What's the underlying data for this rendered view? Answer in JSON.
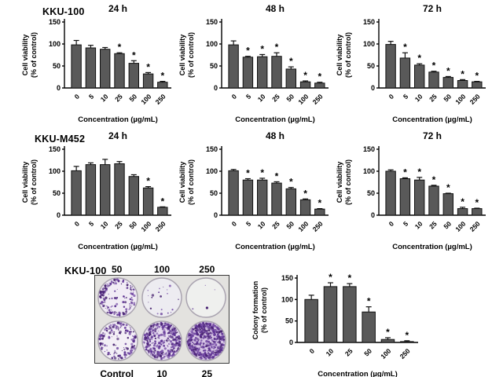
{
  "figure": {
    "bar_color": "#595959",
    "bar_stroke": "#111111",
    "axis_color": "#000000",
    "sig_marker": "*",
    "rows": [
      {
        "cell_line": "KKU-100"
      },
      {
        "cell_line": "KKU-M452"
      }
    ]
  },
  "chart_data": [
    {
      "type": "bar",
      "cell_line": "KKU-100",
      "title": "24 h",
      "categories": [
        "0",
        "5",
        "10",
        "25",
        "50",
        "100",
        "250"
      ],
      "values": [
        98,
        91,
        88,
        78,
        56,
        32,
        13
      ],
      "errors": [
        10,
        6,
        4,
        2,
        6,
        3,
        2
      ],
      "sig": [
        0,
        0,
        0,
        1,
        1,
        1,
        1
      ],
      "ylabel": [
        "Cell viability",
        "(% of control)"
      ],
      "xlabel": "Concentration (µg/mL)",
      "ylim": [
        0,
        150
      ],
      "yticks": [
        0,
        50,
        100,
        150
      ]
    },
    {
      "type": "bar",
      "cell_line": "KKU-100",
      "title": "48 h",
      "categories": [
        "0",
        "5",
        "10",
        "25",
        "50",
        "100",
        "250"
      ],
      "values": [
        98,
        70,
        71,
        72,
        43,
        14,
        11
      ],
      "errors": [
        9,
        2,
        5,
        8,
        5,
        2,
        2
      ],
      "sig": [
        0,
        1,
        1,
        1,
        1,
        1,
        1
      ],
      "ylabel": [
        "Cell viability",
        "(% of control)"
      ],
      "xlabel": "Concentration (µg/mL)",
      "ylim": [
        0,
        150
      ],
      "yticks": [
        0,
        50,
        100,
        150
      ]
    },
    {
      "type": "bar",
      "cell_line": "KKU-100",
      "title": "72 h",
      "categories": [
        "0",
        "5",
        "10",
        "25",
        "50",
        "100",
        "250"
      ],
      "values": [
        99,
        68,
        52,
        36,
        24,
        17,
        14
      ],
      "errors": [
        7,
        12,
        3,
        2,
        2,
        2,
        1
      ],
      "sig": [
        0,
        1,
        1,
        1,
        1,
        1,
        1
      ],
      "ylabel": [
        "Cell viability",
        "(% of control)"
      ],
      "xlabel": "Concentration (µg/mL)",
      "ylim": [
        0,
        150
      ],
      "yticks": [
        0,
        50,
        100,
        150
      ]
    },
    {
      "type": "bar",
      "cell_line": "KKU-M452",
      "title": "24 h",
      "categories": [
        "0",
        "5",
        "10",
        "25",
        "50",
        "100",
        "250"
      ],
      "values": [
        101,
        115,
        115,
        117,
        88,
        62,
        18
      ],
      "errors": [
        10,
        4,
        12,
        5,
        4,
        3,
        1
      ],
      "sig": [
        0,
        0,
        0,
        0,
        0,
        1,
        1
      ],
      "ylabel": [
        "Cell viability",
        "(% of control)"
      ],
      "xlabel": "Concentration (µg/mL)",
      "ylim": [
        0,
        150
      ],
      "yticks": [
        0,
        50,
        100,
        150
      ]
    },
    {
      "type": "bar",
      "cell_line": "KKU-M452",
      "title": "48 h",
      "categories": [
        "0",
        "5",
        "10",
        "25",
        "50",
        "100",
        "250"
      ],
      "values": [
        101,
        80,
        80,
        73,
        60,
        35,
        14
      ],
      "errors": [
        3,
        3,
        4,
        3,
        3,
        2,
        1
      ],
      "sig": [
        0,
        1,
        1,
        1,
        1,
        1,
        1
      ],
      "ylabel": [
        "Cell viability",
        "(% of control)"
      ],
      "xlabel": "Concentration (µg/mL)",
      "ylim": [
        0,
        150
      ],
      "yticks": [
        0,
        50,
        100,
        150
      ]
    },
    {
      "type": "bar",
      "cell_line": "KKU-M452",
      "title": "72 h",
      "categories": [
        "0",
        "5",
        "10",
        "25",
        "50",
        "100",
        "250"
      ],
      "values": [
        100,
        83,
        80,
        66,
        49,
        15,
        15
      ],
      "errors": [
        3,
        2,
        6,
        2,
        1,
        3,
        1
      ],
      "sig": [
        0,
        1,
        1,
        1,
        1,
        1,
        1
      ],
      "ylabel": [
        "Cell viability",
        "(% of control)"
      ],
      "xlabel": "Concentration (µg/mL)",
      "ylim": [
        0,
        150
      ],
      "yticks": [
        0,
        50,
        100,
        150
      ]
    },
    {
      "type": "bar",
      "cell_line": "KKU-100",
      "title": "",
      "categories": [
        "0",
        "10",
        "25",
        "50",
        "100",
        "250"
      ],
      "values": [
        100,
        130,
        130,
        71,
        7,
        2
      ],
      "errors": [
        10,
        9,
        7,
        12,
        4,
        2
      ],
      "sig": [
        0,
        1,
        1,
        1,
        1,
        1
      ],
      "ylabel": [
        "Colony formation",
        "(% of control)"
      ],
      "xlabel": "Concentration (µg/mL)",
      "ylim": [
        0,
        150
      ],
      "yticks": [
        0,
        50,
        100,
        150
      ]
    }
  ],
  "colony_assay": {
    "cell_line": "KKU-100",
    "top_labels": [
      "50",
      "100",
      "250"
    ],
    "bottom_labels": [
      "Control",
      "10",
      "25"
    ],
    "colony_colors": [
      "#5b2f91",
      "#744aa5",
      "#46216f"
    ],
    "wells": [
      {
        "name": "50",
        "density": 150,
        "edge_bias": 0.75,
        "tint": "#f1ecf5"
      },
      {
        "name": "100",
        "density": 20,
        "edge_bias": 0.3,
        "tint": "#edecf1"
      },
      {
        "name": "250",
        "density": 4,
        "edge_bias": 0.2,
        "tint": "#eff0ee"
      },
      {
        "name": "Control",
        "density": 160,
        "edge_bias": 0.7,
        "tint": "#f3eff6"
      },
      {
        "name": "10",
        "density": 400,
        "edge_bias": 0.45,
        "tint": "#e6dcef"
      },
      {
        "name": "25",
        "density": 540,
        "edge_bias": 0.35,
        "tint": "#d7c6e5"
      }
    ]
  }
}
